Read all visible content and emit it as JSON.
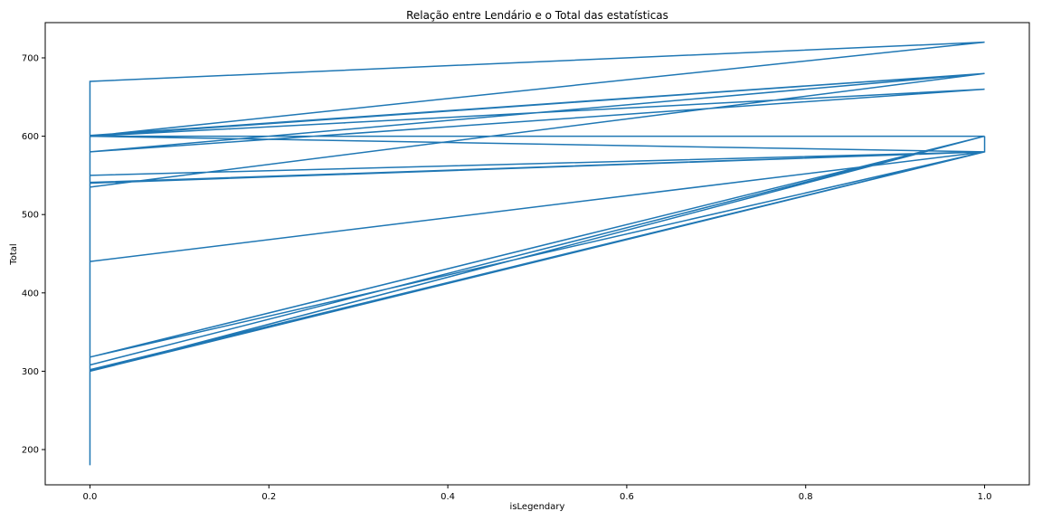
{
  "chart_data": {
    "type": "line",
    "title": "Relação entre Lendário e o Total das estatísticas",
    "xlabel": "isLegendary",
    "ylabel": "Total",
    "xlim": [
      -0.05,
      1.05
    ],
    "ylim": [
      155,
      745
    ],
    "xticks": [
      {
        "value": 0.0,
        "label": "0.0"
      },
      {
        "value": 0.2,
        "label": "0.2"
      },
      {
        "value": 0.4,
        "label": "0.4"
      },
      {
        "value": 0.6,
        "label": "0.6"
      },
      {
        "value": 0.8,
        "label": "0.8"
      },
      {
        "value": 1.0,
        "label": "1.0"
      }
    ],
    "yticks": [
      {
        "value": 200,
        "label": "200"
      },
      {
        "value": 300,
        "label": "300"
      },
      {
        "value": 400,
        "label": "400"
      },
      {
        "value": 500,
        "label": "500"
      },
      {
        "value": 600,
        "label": "600"
      },
      {
        "value": 700,
        "label": "700"
      }
    ],
    "grid": false,
    "legend": false,
    "color": "#1f77b4",
    "series": [
      {
        "x": [
          0,
          0,
          1,
          0,
          1,
          0,
          1,
          0,
          1,
          0,
          1,
          0,
          1,
          0,
          1,
          0,
          1,
          0,
          1,
          0,
          1,
          0,
          1,
          0,
          1,
          0,
          1,
          0,
          1,
          0,
          1,
          1,
          1,
          0,
          0
        ],
        "y": [
          180,
          670,
          720,
          600,
          680,
          601,
          680,
          535,
          680,
          580,
          660,
          600,
          600,
          600,
          580,
          540,
          580,
          541,
          580,
          550,
          580,
          440,
          580,
          318,
          600,
          308,
          600,
          300,
          580,
          301,
          580,
          600,
          580,
          302,
          600
        ]
      }
    ]
  }
}
